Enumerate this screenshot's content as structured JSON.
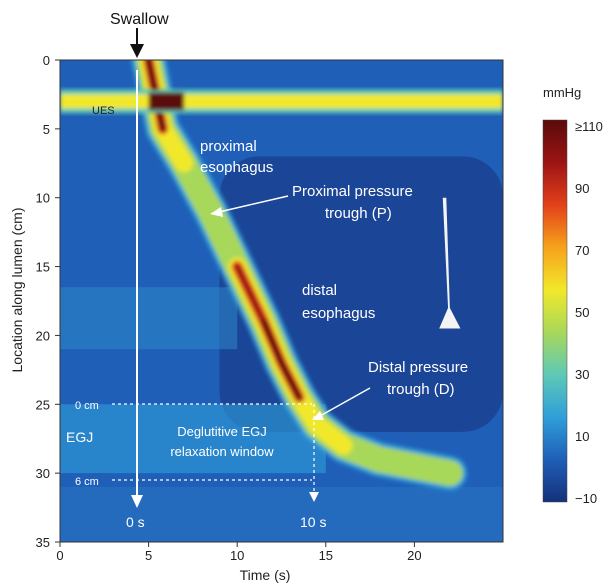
{
  "chart_data": {
    "type": "heatmap",
    "title": "",
    "xlabel": "Time (s)",
    "ylabel": "Location along lumen (cm)",
    "xlim": [
      0,
      25
    ],
    "ylim": [
      35,
      0
    ],
    "x_ticks": [
      "0",
      "5",
      "10",
      "15",
      "20"
    ],
    "y_ticks": [
      "0",
      "5",
      "10",
      "15",
      "20",
      "25",
      "30",
      "35"
    ],
    "colorbar": {
      "unit": "mmHg",
      "ticks": [
        "≥110",
        "90",
        "70",
        "50",
        "30",
        "10",
        "−10"
      ],
      "range": [
        -10,
        110
      ],
      "colors": [
        "#15307a",
        "#1f5fb8",
        "#2f9fd8",
        "#5ec9b6",
        "#a8d85a",
        "#f2e82a",
        "#f6a21c",
        "#e2411a",
        "#9c1414",
        "#5a0a0a"
      ]
    },
    "background_pressure_mmHg": 8,
    "ues": {
      "label": "UES",
      "depth_cm": 3,
      "time_s": [
        0,
        25
      ],
      "peak_mmHg": 110
    },
    "contraction_front": {
      "time_s": [
        5,
        5.8,
        7,
        8.5,
        10,
        11.5,
        12.5,
        13.5,
        14.5,
        16,
        18,
        20,
        22
      ],
      "depth_cm": [
        0,
        5,
        7.5,
        11,
        15,
        19,
        22,
        24.5,
        26.5,
        28,
        29,
        29.5,
        30
      ],
      "peak_mmHg": [
        120,
        90,
        75,
        55,
        85,
        100,
        115,
        105,
        70,
        60,
        55,
        50,
        45
      ]
    },
    "annotations": {
      "swallow": "Swallow",
      "proximal": "proximal\nesophagus",
      "proximal_trough": "Proximal pressure\ntrough (P)",
      "distal": "distal\nesophagus",
      "distal_trough": "Distal pressure\ntrough (D)",
      "egj": "EGJ",
      "zero_cm": "0 cm",
      "six_cm": "6 cm",
      "relaxation": "Deglutitive EGJ\nrelaxation window",
      "zero_s": "0 s",
      "ten_s": "10 s"
    }
  }
}
